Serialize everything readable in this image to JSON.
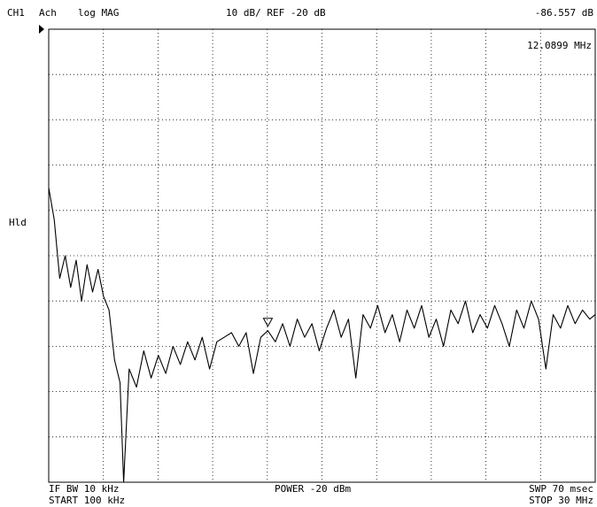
{
  "chart_data": {
    "type": "line",
    "channel": "CH1",
    "trace": "Ach",
    "format": "log MAG",
    "scale": "10 dB/ REF -20 dB",
    "status": "Hld",
    "if_bw": "IF BW 10 kHz",
    "start": "START 100 kHz",
    "power": "POWER -20 dBm",
    "sweep": "SWP 70 msec",
    "stop": "STOP 30 MHz",
    "marker": {
      "x": {
        "value": 12.0899,
        "label": "12.0899 MHz"
      },
      "y": {
        "value": -86.557,
        "label": "-86.557 dB"
      }
    },
    "color": "#000000",
    "grid": true,
    "xlim": [
      0.1,
      30
    ],
    "ylim": [
      -120,
      -20
    ],
    "xticks": [
      3.09,
      6.08,
      9.07,
      12.06,
      15.05,
      18.04,
      21.03,
      24.02,
      27.01
    ],
    "yticks": [
      -110,
      -100,
      -90,
      -80,
      -70,
      -60,
      -50,
      -40,
      -30
    ],
    "x": [
      0.1,
      0.4,
      0.7,
      1.0,
      1.3,
      1.6,
      1.9,
      2.2,
      2.5,
      2.8,
      3.1,
      3.4,
      3.7,
      4.0,
      4.2,
      4.5,
      4.9,
      5.3,
      5.7,
      6.1,
      6.5,
      6.9,
      7.3,
      7.7,
      8.1,
      8.5,
      8.9,
      9.3,
      9.7,
      10.1,
      10.5,
      10.9,
      11.3,
      11.7,
      12.0899,
      12.5,
      12.9,
      13.3,
      13.7,
      14.1,
      14.5,
      14.9,
      15.3,
      15.7,
      16.1,
      16.5,
      16.9,
      17.3,
      17.7,
      18.1,
      18.5,
      18.9,
      19.3,
      19.7,
      20.1,
      20.5,
      20.9,
      21.3,
      21.7,
      22.1,
      22.5,
      22.9,
      23.3,
      23.7,
      24.1,
      24.5,
      24.9,
      25.3,
      25.7,
      26.1,
      26.5,
      26.9,
      27.3,
      27.7,
      28.1,
      28.5,
      28.9,
      29.3,
      29.7,
      30.0
    ],
    "values": [
      -55,
      -62,
      -75,
      -70,
      -77,
      -71,
      -80,
      -72,
      -78,
      -73,
      -79,
      -82,
      -93,
      -98,
      -120,
      -95,
      -99,
      -91,
      -97,
      -92,
      -96,
      -90,
      -94,
      -89,
      -93,
      -88,
      -95,
      -89,
      -88,
      -87,
      -90,
      -87,
      -96,
      -88,
      -86.557,
      -89,
      -85,
      -90,
      -84,
      -88,
      -85,
      -91,
      -86,
      -82,
      -88,
      -84,
      -97,
      -83,
      -86,
      -81,
      -87,
      -83,
      -89,
      -82,
      -86,
      -81,
      -88,
      -84,
      -90,
      -82,
      -85,
      -80,
      -87,
      -83,
      -86,
      -81,
      -85,
      -90,
      -82,
      -86,
      -80,
      -84,
      -95,
      -83,
      -86,
      -81,
      -85,
      -82,
      -84,
      -83
    ]
  }
}
